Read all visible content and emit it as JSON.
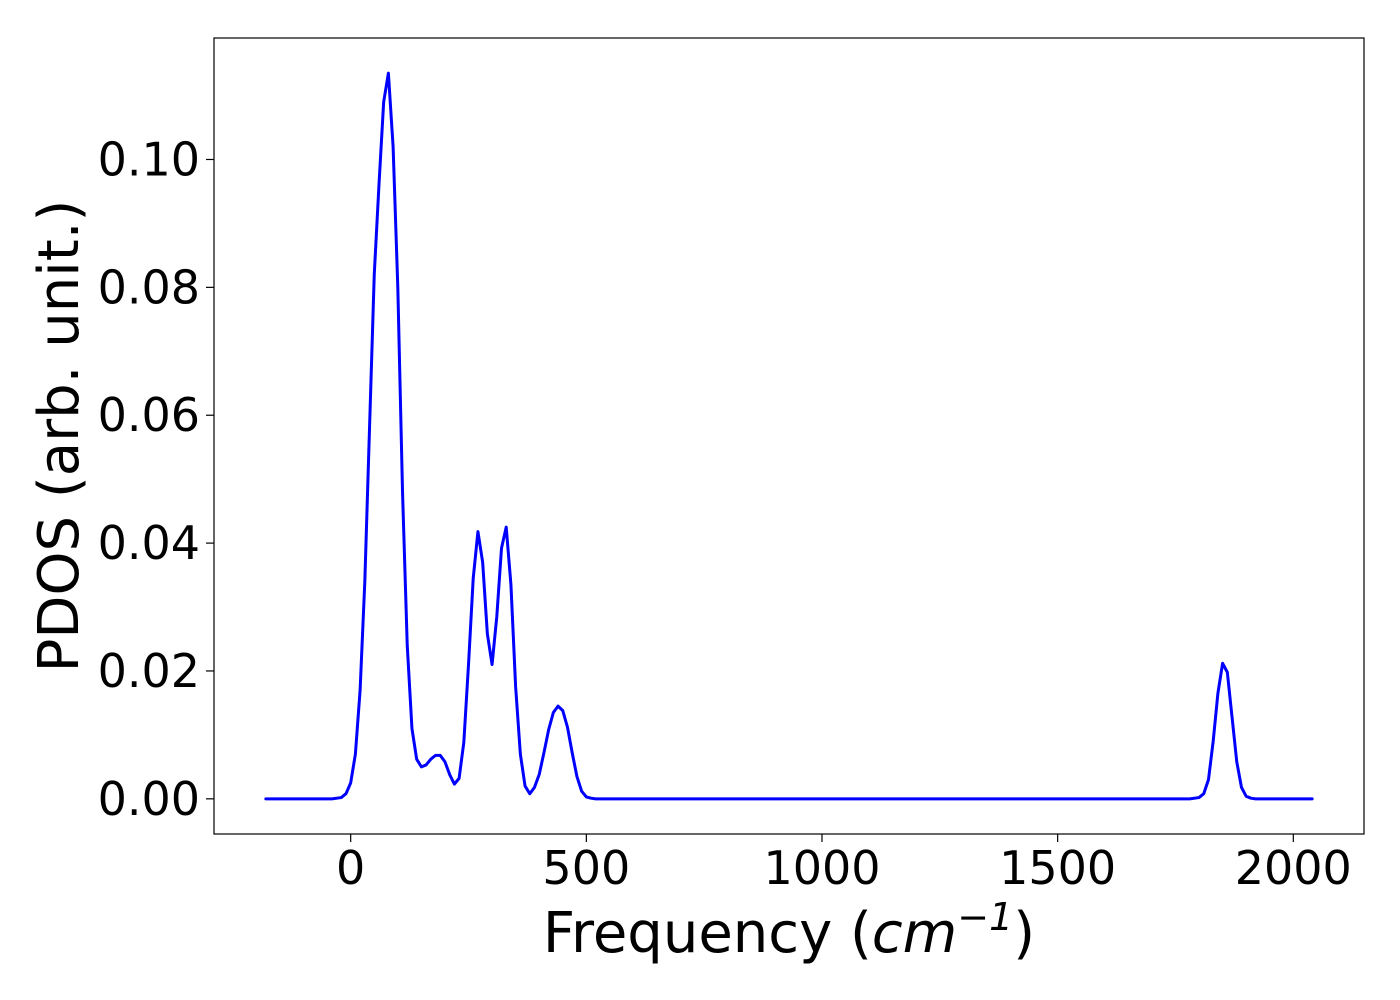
{
  "chart_data": {
    "type": "line",
    "title": "",
    "xlabel": {
      "prefix": "Frequency (",
      "unit_base": "cm",
      "unit_exponent": "−1",
      "suffix": ")"
    },
    "ylabel": "PDOS (arb. unit.)",
    "xlim": [
      -290,
      2150
    ],
    "ylim": [
      -0.0055,
      0.119
    ],
    "xticks": [
      0,
      500,
      1000,
      1500,
      2000
    ],
    "xtick_labels": [
      "0",
      "500",
      "1000",
      "1500",
      "2000"
    ],
    "yticks": [
      0.0,
      0.02,
      0.04,
      0.06,
      0.08,
      0.1
    ],
    "ytick_labels": [
      "0.00",
      "0.02",
      "0.04",
      "0.06",
      "0.08",
      "0.10"
    ],
    "grid": false,
    "legend": "none",
    "series": [
      {
        "color": "#0000ff",
        "x": [
          -180,
          -40,
          -20,
          -10,
          0,
          10,
          20,
          30,
          40,
          50,
          60,
          70,
          80,
          90,
          100,
          110,
          120,
          130,
          140,
          150,
          160,
          170,
          180,
          190,
          200,
          210,
          220,
          230,
          240,
          250,
          260,
          270,
          280,
          290,
          300,
          310,
          320,
          330,
          340,
          350,
          360,
          370,
          380,
          390,
          400,
          410,
          420,
          430,
          440,
          450,
          460,
          470,
          480,
          490,
          500,
          510,
          520,
          530,
          540,
          550,
          560,
          600,
          1780,
          1800,
          1810,
          1820,
          1830,
          1840,
          1850,
          1860,
          1870,
          1880,
          1890,
          1900,
          1910,
          1920,
          2040
        ],
        "y": [
          0.0,
          0.0,
          0.0002,
          0.0008,
          0.0025,
          0.007,
          0.017,
          0.034,
          0.058,
          0.082,
          0.096,
          0.109,
          0.1135,
          0.102,
          0.08,
          0.048,
          0.024,
          0.011,
          0.0062,
          0.005,
          0.0053,
          0.0062,
          0.0068,
          0.0068,
          0.0058,
          0.0038,
          0.0023,
          0.0032,
          0.0088,
          0.021,
          0.0345,
          0.0418,
          0.037,
          0.0258,
          0.021,
          0.0285,
          0.0392,
          0.0425,
          0.0335,
          0.0175,
          0.007,
          0.002,
          0.0008,
          0.0018,
          0.0038,
          0.0072,
          0.0108,
          0.0135,
          0.0145,
          0.0138,
          0.0112,
          0.0072,
          0.0035,
          0.0012,
          0.0003,
          0.0001,
          0.0,
          0.0,
          0.0,
          0.0,
          0.0,
          0.0,
          0.0,
          0.0002,
          0.0008,
          0.003,
          0.009,
          0.0165,
          0.0212,
          0.0198,
          0.0128,
          0.0058,
          0.0018,
          0.0004,
          0.0001,
          0.0,
          0.0
        ]
      }
    ]
  }
}
